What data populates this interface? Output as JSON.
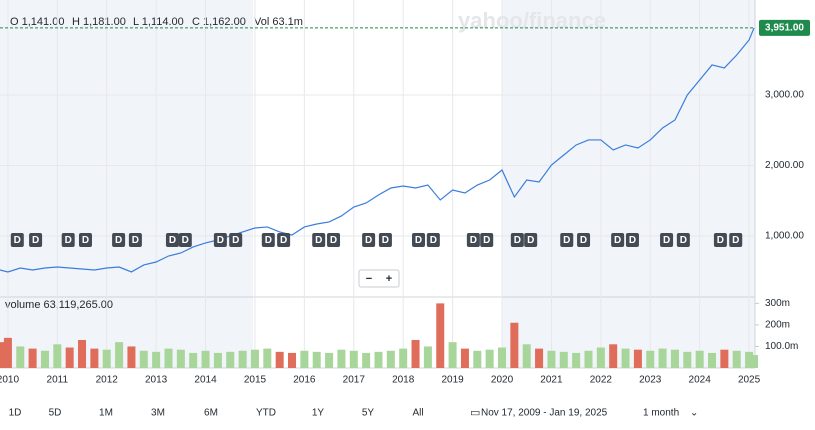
{
  "header": {
    "open": "O 1,141.00",
    "high": "H 1,181.00",
    "low": "L 1,114.00",
    "close": "C 1,162.00",
    "volume": "Vol 63.1m",
    "watermark": "yahoo/finance"
  },
  "controls": {
    "zoom_out": "−",
    "zoom_in": "+",
    "ranges": [
      "1D",
      "5D",
      "1M",
      "3M",
      "6M",
      "YTD",
      "1Y",
      "5Y",
      "All"
    ],
    "date_range": "Nov 17, 2009 - Jan 19, 2025",
    "interval": "1 month"
  },
  "chart_data": [
    {
      "type": "line",
      "color": "#3b7ddd",
      "x": [
        2009.84,
        2010,
        2010.25,
        2010.5,
        2010.75,
        2011,
        2011.25,
        2011.5,
        2011.75,
        2012,
        2012.25,
        2012.5,
        2012.75,
        2013,
        2013.25,
        2013.5,
        2013.75,
        2014,
        2014.25,
        2014.5,
        2014.75,
        2015,
        2015.25,
        2015.5,
        2015.75,
        2016,
        2016.25,
        2016.5,
        2016.75,
        2017,
        2017.25,
        2017.5,
        2017.75,
        2018,
        2018.25,
        2018.5,
        2018.75,
        2019,
        2019.25,
        2019.5,
        2019.75,
        2020,
        2020.25,
        2020.5,
        2020.75,
        2021,
        2021.25,
        2021.5,
        2021.75,
        2022,
        2022.25,
        2022.5,
        2022.75,
        2023,
        2023.25,
        2023.5,
        2023.75,
        2024,
        2024.25,
        2024.5,
        2024.75,
        2025,
        2025.1
      ],
      "values": [
        518,
        490,
        546,
        518,
        546,
        560,
        546,
        532,
        518,
        546,
        560,
        490,
        589,
        631,
        716,
        759,
        844,
        901,
        943,
        1000,
        1057,
        1113,
        1128,
        1057,
        1014,
        1128,
        1170,
        1199,
        1284,
        1411,
        1468,
        1582,
        1681,
        1709,
        1681,
        1723,
        1511,
        1652,
        1610,
        1723,
        1794,
        1936,
        1553,
        1794,
        1766,
        2007,
        2149,
        2291,
        2362,
        2362,
        2220,
        2291,
        2248,
        2362,
        2532,
        2645,
        3000,
        3213,
        3426,
        3383,
        3567,
        3780,
        3951
      ],
      "xlim": [
        2009.84,
        2025.12
      ],
      "xticks": [
        2010,
        2011,
        2012,
        2013,
        2014,
        2015,
        2016,
        2017,
        2018,
        2019,
        2020,
        2021,
        2022,
        2023,
        2024,
        2025
      ],
      "ylim": [
        163,
        4347
      ],
      "yticks": [
        {
          "value": 1000,
          "label": "1,000.00"
        },
        {
          "value": 2000,
          "label": "2,000.00"
        },
        {
          "value": 3000,
          "label": "3,000.00"
        }
      ],
      "grid": true,
      "last_price": {
        "value": 3951,
        "label": "3,951.00"
      },
      "dividends": {
        "label": "D",
        "x": [
          2010.18,
          2010.55,
          2011.21,
          2011.56,
          2012.23,
          2012.57,
          2013.32,
          2013.58,
          2014.29,
          2014.6,
          2015.26,
          2015.57,
          2016.28,
          2016.58,
          2017.29,
          2017.63,
          2018.3,
          2018.6,
          2019.41,
          2019.68,
          2020.3,
          2020.57,
          2021.3,
          2021.64,
          2022.33,
          2022.63,
          2023.32,
          2023.66,
          2024.41,
          2024.72
        ]
      }
    },
    {
      "type": "bar",
      "title": "volume 63,119,265.00",
      "x": [
        2009.84,
        2010,
        2010.25,
        2010.5,
        2010.75,
        2011,
        2011.25,
        2011.5,
        2011.75,
        2012,
        2012.25,
        2012.5,
        2012.75,
        2013,
        2013.25,
        2013.5,
        2013.75,
        2014,
        2014.25,
        2014.5,
        2014.75,
        2015,
        2015.25,
        2015.5,
        2015.75,
        2016,
        2016.25,
        2016.5,
        2016.75,
        2017,
        2017.25,
        2017.5,
        2017.75,
        2018,
        2018.25,
        2018.5,
        2018.75,
        2019,
        2019.25,
        2019.5,
        2019.75,
        2020,
        2020.25,
        2020.5,
        2020.75,
        2021,
        2021.25,
        2021.5,
        2021.75,
        2022,
        2022.25,
        2022.5,
        2022.75,
        2023,
        2023.25,
        2023.5,
        2023.75,
        2024,
        2024.25,
        2024.5,
        2024.75,
        2025,
        2025.1
      ],
      "values": [
        120000000,
        140000000,
        100000000,
        90000000,
        80000000,
        110000000,
        95000000,
        130000000,
        90000000,
        85000000,
        120000000,
        100000000,
        80000000,
        75000000,
        90000000,
        85000000,
        70000000,
        80000000,
        70000000,
        75000000,
        80000000,
        85000000,
        90000000,
        75000000,
        70000000,
        80000000,
        75000000,
        70000000,
        85000000,
        80000000,
        70000000,
        75000000,
        80000000,
        90000000,
        130000000,
        100000000,
        300000000,
        120000000,
        90000000,
        80000000,
        85000000,
        95000000,
        210000000,
        110000000,
        90000000,
        80000000,
        75000000,
        70000000,
        80000000,
        95000000,
        110000000,
        90000000,
        85000000,
        80000000,
        90000000,
        85000000,
        75000000,
        80000000,
        70000000,
        85000000,
        80000000,
        75000000,
        60000000
      ],
      "colors": [
        "#e06c5a",
        "#e06c5a",
        "#a8d59a",
        "#e06c5a",
        "#a8d59a",
        "#a8d59a",
        "#e06c5a",
        "#e06c5a",
        "#e06c5a",
        "#a8d59a",
        "#a8d59a",
        "#e06c5a",
        "#a8d59a",
        "#a8d59a",
        "#a8d59a",
        "#a8d59a",
        "#a8d59a",
        "#a8d59a",
        "#a8d59a",
        "#a8d59a",
        "#a8d59a",
        "#a8d59a",
        "#a8d59a",
        "#e06c5a",
        "#e06c5a",
        "#a8d59a",
        "#a8d59a",
        "#a8d59a",
        "#a8d59a",
        "#a8d59a",
        "#a8d59a",
        "#a8d59a",
        "#a8d59a",
        "#a8d59a",
        "#e06c5a",
        "#a8d59a",
        "#e06c5a",
        "#a8d59a",
        "#e06c5a",
        "#a8d59a",
        "#a8d59a",
        "#a8d59a",
        "#e06c5a",
        "#a8d59a",
        "#e06c5a",
        "#a8d59a",
        "#a8d59a",
        "#a8d59a",
        "#a8d59a",
        "#a8d59a",
        "#e06c5a",
        "#a8d59a",
        "#e06c5a",
        "#a8d59a",
        "#a8d59a",
        "#a8d59a",
        "#a8d59a",
        "#a8d59a",
        "#a8d59a",
        "#e06c5a",
        "#a8d59a",
        "#a8d59a",
        "#a8d59a"
      ],
      "ylim": [
        0,
        325000000
      ],
      "yticks": [
        {
          "value": 100000000,
          "label": "100.0m"
        },
        {
          "value": 200000000,
          "label": "200m"
        },
        {
          "value": 300000000,
          "label": "300m"
        }
      ]
    }
  ]
}
